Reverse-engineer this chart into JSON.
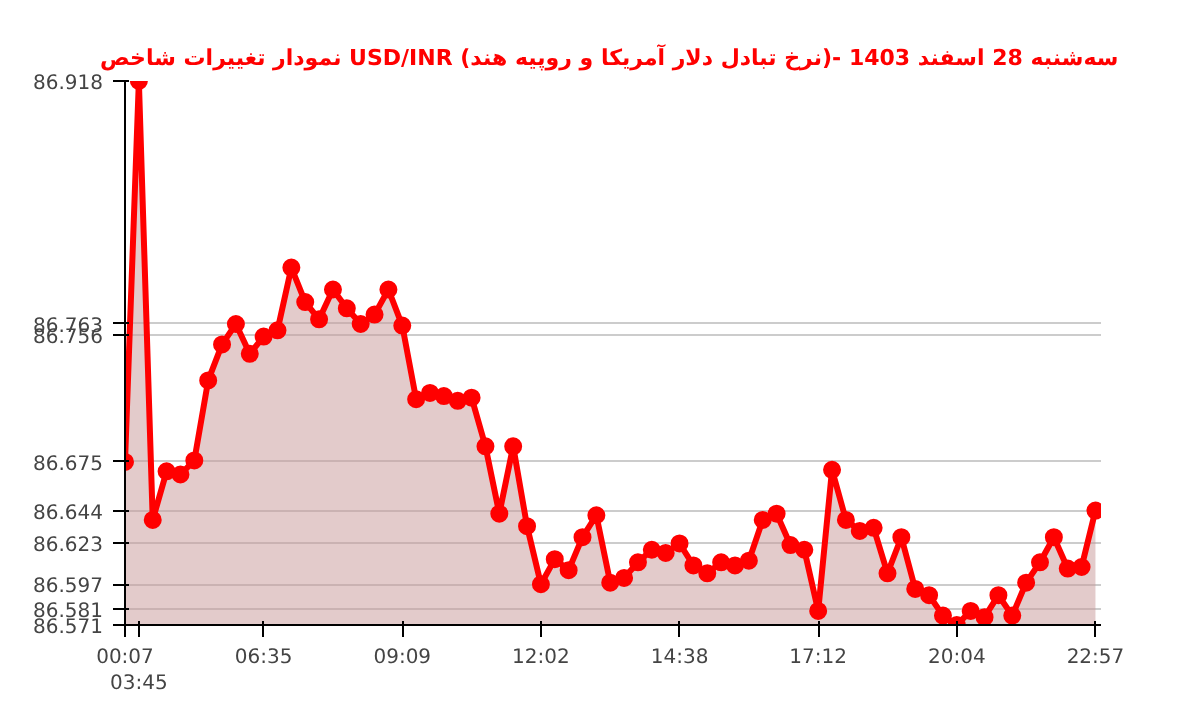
{
  "chart_data": {
    "type": "area",
    "title": "نمودار تغییرات شاخص USD/INR (نرخ تبادل دلار آمریکا و روپیه هند)- سه‌شنبه  28 اسفند 1403",
    "categories": [
      "00:07",
      "03:45",
      null,
      null,
      null,
      null,
      null,
      null,
      null,
      null,
      "06:35",
      null,
      null,
      null,
      null,
      null,
      null,
      null,
      null,
      null,
      "09:09",
      null,
      null,
      null,
      null,
      null,
      null,
      null,
      null,
      null,
      "12:02",
      null,
      null,
      null,
      null,
      null,
      null,
      null,
      null,
      null,
      "14:38",
      null,
      null,
      null,
      null,
      null,
      null,
      null,
      null,
      null,
      "17:12",
      null,
      null,
      null,
      null,
      null,
      null,
      null,
      null,
      null,
      "20:04",
      null,
      null,
      null,
      null,
      null,
      null,
      null,
      null,
      null,
      "22:57"
    ],
    "series": [
      {
        "color": "#ff0000",
        "values": [
          86.675,
          86.918,
          86.638,
          86.669,
          86.667,
          86.676,
          86.727,
          86.75,
          86.763,
          86.744,
          86.755,
          86.759,
          86.799,
          86.777,
          86.766,
          86.785,
          86.773,
          86.763,
          86.769,
          86.785,
          86.762,
          86.715,
          86.719,
          86.717,
          86.714,
          86.716,
          86.685,
          86.642,
          86.685,
          86.634,
          86.597,
          86.613,
          86.606,
          86.627,
          86.641,
          86.598,
          86.601,
          86.611,
          86.619,
          86.617,
          86.623,
          86.609,
          86.604,
          86.611,
          86.609,
          86.612,
          86.638,
          86.642,
          86.622,
          86.619,
          86.58,
          86.67,
          86.638,
          86.631,
          86.633,
          86.604,
          86.627,
          86.594,
          86.59,
          86.577,
          86.571,
          86.58,
          86.576,
          86.59,
          86.577,
          86.598,
          86.611,
          86.627,
          86.607,
          86.608,
          86.644
        ]
      }
    ],
    "ylim": [
      86.571,
      86.918
    ],
    "yticks": [
      86.571,
      86.581,
      86.597,
      86.623,
      86.644,
      86.675,
      86.756,
      86.763,
      86.918
    ],
    "grid": "y",
    "marker": "circle"
  }
}
